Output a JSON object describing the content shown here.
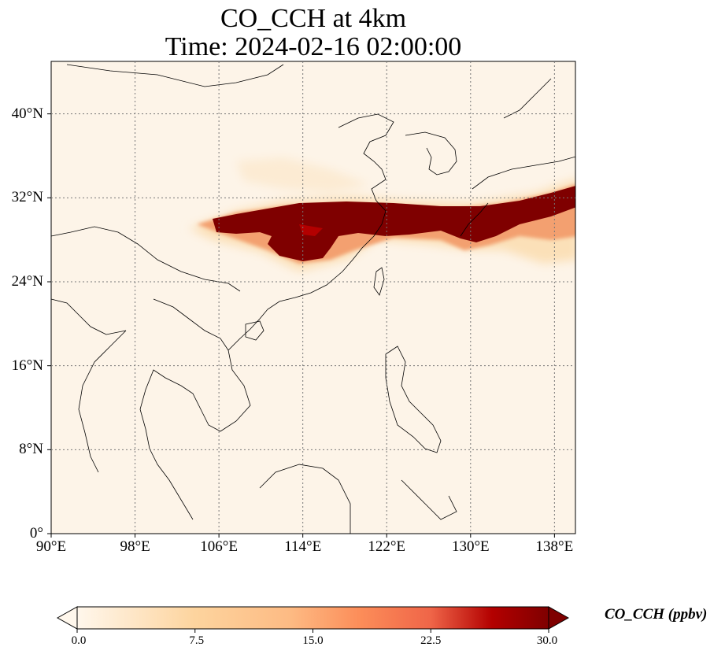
{
  "title": {
    "line1": "CO_CCH at 4km",
    "line2": "Time: 2024-02-16 02:00:00"
  },
  "map": {
    "lon_range": [
      90,
      140
    ],
    "lat_range": [
      0,
      45
    ],
    "lon_ticks": [
      "90°E",
      "98°E",
      "106°E",
      "114°E",
      "122°E",
      "130°E",
      "138°E"
    ],
    "lat_ticks": [
      "0°",
      "8°N",
      "16°N",
      "24°N",
      "32°N",
      "40°N"
    ],
    "gridlines": true,
    "background_color": "#fdf4e8",
    "plume_color": "#7f0000"
  },
  "colorbar": {
    "label": "CO_CCH (ppbv)",
    "colormap": "OrRd",
    "range": [
      0.0,
      30.0
    ],
    "extend": "both",
    "ticks": [
      "0.0",
      "7.5",
      "15.0",
      "22.5",
      "30.0"
    ]
  }
}
